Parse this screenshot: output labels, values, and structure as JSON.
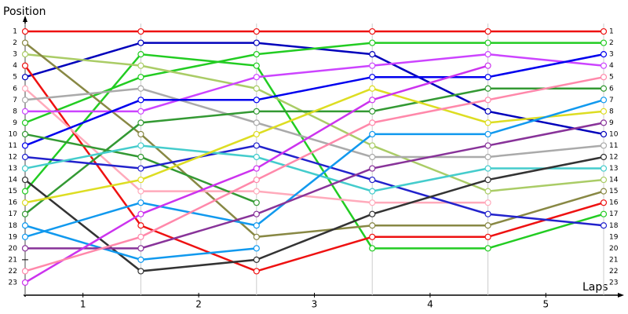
{
  "chart_data": {
    "type": "line",
    "y_label": "Position",
    "x_label": "Laps",
    "x": [
      0,
      1,
      2,
      3,
      4,
      5
    ],
    "xlim": [
      0,
      5
    ],
    "xticks": [
      {
        "value": 0.5,
        "label": "1"
      },
      {
        "value": 1.5,
        "label": "2"
      },
      {
        "value": 2.5,
        "label": "3"
      },
      {
        "value": 3.5,
        "label": "4"
      },
      {
        "value": 4.5,
        "label": "5"
      }
    ],
    "ylim": [
      24,
      0
    ],
    "inverted_y": true,
    "yticks": [
      1,
      2,
      3,
      4,
      5,
      6,
      7,
      8,
      9,
      10,
      11,
      12,
      13,
      14,
      15,
      16,
      17,
      18,
      19,
      20,
      21,
      22,
      23
    ],
    "grid": true,
    "series": [
      {
        "color": "#ee1111",
        "values": [
          1,
          1,
          1,
          1,
          1,
          1
        ]
      },
      {
        "color": "#0000bb",
        "values": [
          5,
          2,
          2,
          3,
          8,
          10
        ]
      },
      {
        "color": "#22cc22",
        "values": [
          9,
          5,
          3,
          2,
          2,
          2
        ]
      },
      {
        "color": "#22cc22",
        "values": [
          15,
          3,
          4,
          20,
          20,
          17
        ]
      },
      {
        "color": "#aacc66",
        "values": [
          3,
          4,
          6,
          11,
          15,
          14
        ]
      },
      {
        "color": "#888844",
        "values": [
          2,
          10,
          19,
          18,
          18,
          15
        ]
      },
      {
        "color": "#ee1111",
        "values": [
          4,
          18,
          22,
          19,
          19,
          16
        ]
      },
      {
        "color": "#ffaabb",
        "values": [
          6,
          15,
          15,
          16,
          16,
          null
        ]
      },
      {
        "color": "#aaaaaa",
        "values": [
          7,
          6,
          9,
          12,
          12,
          11
        ]
      },
      {
        "color": "#cc44ff",
        "values": [
          8,
          8,
          5,
          4,
          3,
          4
        ]
      },
      {
        "color": "#0000ee",
        "values": [
          11,
          7,
          7,
          5,
          5,
          3
        ]
      },
      {
        "color": "#339933",
        "values": [
          10,
          12,
          16,
          null,
          null,
          null
        ]
      },
      {
        "color": "#339933",
        "values": [
          17,
          9,
          8,
          8,
          6,
          6
        ]
      },
      {
        "color": "#2222cc",
        "values": [
          12,
          13,
          11,
          14,
          17,
          18
        ]
      },
      {
        "color": "#44cccc",
        "values": [
          13,
          11,
          12,
          15,
          13,
          13
        ]
      },
      {
        "color": "#333333",
        "values": [
          14,
          22,
          21,
          17,
          14,
          12
        ]
      },
      {
        "color": "#dddd22",
        "values": [
          16,
          14,
          10,
          6,
          9,
          8
        ]
      },
      {
        "color": "#1199ee",
        "values": [
          19,
          16,
          18,
          10,
          10,
          7
        ]
      },
      {
        "color": "#1199ee",
        "values": [
          18,
          21,
          20,
          null,
          null,
          null
        ]
      },
      {
        "color": "#883399",
        "values": [
          20,
          20,
          17,
          13,
          11,
          9
        ]
      },
      {
        "color": "#cc33ee",
        "values": [
          23,
          17,
          13,
          7,
          4,
          null
        ]
      },
      {
        "color": "#ff88aa",
        "values": [
          22,
          19,
          14,
          9,
          7,
          5
        ]
      }
    ]
  }
}
